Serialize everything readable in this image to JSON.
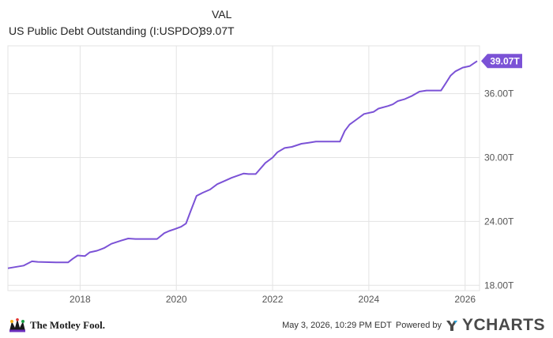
{
  "legend": {
    "header": "VAL",
    "series_name": "US Public Debt Outstanding (I:USPDO)",
    "series_value": "39.07T"
  },
  "footer": {
    "brand": "The Motley Fool.",
    "timestamp": "May 3, 2026, 10:29 PM EDT",
    "powered_by": "Powered by",
    "provider": "YCHARTS"
  },
  "colors": {
    "line": "#7B52D6",
    "grid": "#e3e3e3",
    "axis_text": "#555555"
  },
  "chart_data": {
    "type": "line",
    "title": "",
    "xlabel": "",
    "ylabel": "",
    "x_ticks": [
      "2018",
      "2020",
      "2022",
      "2024",
      "2026"
    ],
    "y_ticks": [
      "18.00T",
      "24.00T",
      "30.00T",
      "36.00T"
    ],
    "y_tick_values": [
      18,
      24,
      30,
      36
    ],
    "ylim": [
      17.5,
      40.5
    ],
    "xlim": [
      2016.5,
      2026.3
    ],
    "grid": true,
    "last_value_label": "39.07T",
    "series": [
      {
        "name": "US Public Debt Outstanding (I:USPDO)",
        "x": [
          2016.5,
          2016.83,
          2017.0,
          2017.12,
          2017.5,
          2017.62,
          2017.75,
          2017.85,
          2017.95,
          2018.1,
          2018.2,
          2018.35,
          2018.5,
          2018.65,
          2018.85,
          2019.0,
          2019.15,
          2019.3,
          2019.6,
          2019.75,
          2019.85,
          2019.98,
          2020.1,
          2020.2,
          2020.3,
          2020.42,
          2020.55,
          2020.7,
          2020.85,
          2021.0,
          2021.15,
          2021.4,
          2021.5,
          2021.65,
          2021.85,
          2022.0,
          2022.1,
          2022.25,
          2022.4,
          2022.6,
          2022.75,
          2022.9,
          2023.0,
          2023.2,
          2023.4,
          2023.5,
          2023.6,
          2023.75,
          2023.9,
          2024.1,
          2024.2,
          2024.4,
          2024.5,
          2024.6,
          2024.75,
          2024.9,
          2025.05,
          2025.2,
          2025.5,
          2025.6,
          2025.7,
          2025.8,
          2025.95,
          2026.1,
          2026.25
        ],
        "values": [
          19.6,
          19.85,
          20.25,
          20.2,
          20.15,
          20.15,
          20.15,
          20.5,
          20.8,
          20.75,
          21.1,
          21.25,
          21.5,
          21.9,
          22.2,
          22.4,
          22.35,
          22.35,
          22.35,
          22.9,
          23.1,
          23.3,
          23.5,
          23.8,
          25.0,
          26.4,
          26.7,
          27.0,
          27.5,
          27.8,
          28.1,
          28.5,
          28.45,
          28.45,
          29.5,
          30.0,
          30.5,
          30.9,
          31.0,
          31.3,
          31.4,
          31.5,
          31.5,
          31.5,
          31.5,
          32.5,
          33.1,
          33.6,
          34.1,
          34.3,
          34.6,
          34.85,
          35.0,
          35.3,
          35.5,
          35.8,
          36.2,
          36.3,
          36.3,
          37.0,
          37.7,
          38.1,
          38.45,
          38.6,
          39.07
        ]
      }
    ]
  }
}
